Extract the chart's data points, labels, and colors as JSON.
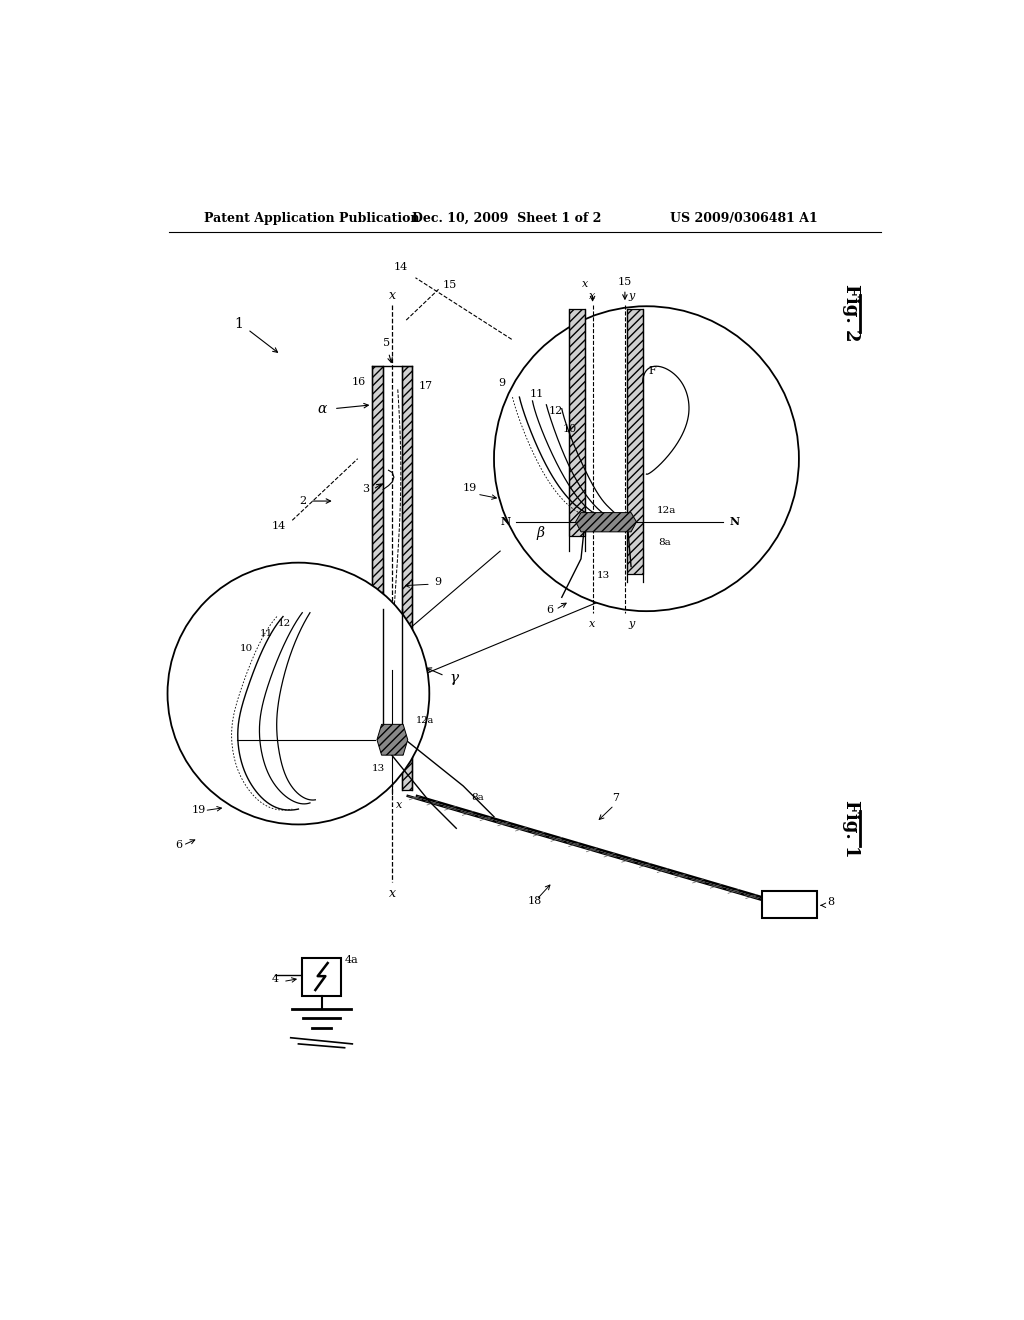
{
  "header_left": "Patent Application Publication",
  "header_mid": "Dec. 10, 2009  Sheet 1 of 2",
  "header_right": "US 2009/0306481 A1",
  "bg_color": "#ffffff",
  "line_color": "#000000",
  "fig_width": 10.24,
  "fig_height": 13.2,
  "dpi": 100
}
